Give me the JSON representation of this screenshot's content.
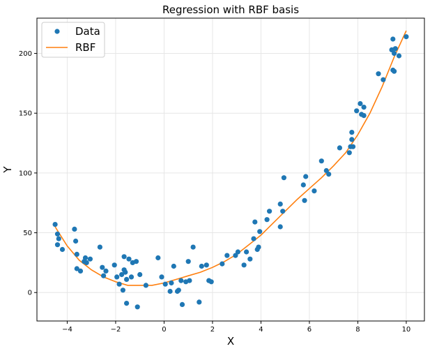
{
  "chart_data": {
    "type": "scatter",
    "title": "Regression with RBF basis",
    "xlabel": "X",
    "ylabel": "Y",
    "xlim": [
      -5.25,
      10.75
    ],
    "ylim": [
      -23.8,
      229.5
    ],
    "xticks": [
      -4,
      -2,
      0,
      2,
      4,
      6,
      8,
      10
    ],
    "yticks": [
      0,
      50,
      100,
      150,
      200
    ],
    "grid": true,
    "legend": {
      "placement": "upper-left",
      "entries": [
        "Data",
        "RBF"
      ]
    },
    "colors": {
      "data": "#1f77b4",
      "rbf": "#ff7f0e"
    },
    "series": [
      {
        "name": "Data",
        "type": "scatter",
        "points": [
          [
            -4.5,
            57
          ],
          [
            -4.4,
            49
          ],
          [
            -4.35,
            45
          ],
          [
            -4.4,
            40
          ],
          [
            -4.2,
            36
          ],
          [
            -3.7,
            53
          ],
          [
            -3.65,
            43
          ],
          [
            -3.6,
            32
          ],
          [
            -3.6,
            20
          ],
          [
            -3.45,
            18
          ],
          [
            -3.3,
            26
          ],
          [
            -3.25,
            29
          ],
          [
            -3.2,
            25
          ],
          [
            -3.05,
            28
          ],
          [
            -2.65,
            38
          ],
          [
            -2.55,
            21
          ],
          [
            -2.5,
            14
          ],
          [
            -2.4,
            18
          ],
          [
            -2.05,
            23
          ],
          [
            -1.95,
            13
          ],
          [
            -1.85,
            7
          ],
          [
            -1.75,
            15
          ],
          [
            -1.7,
            2
          ],
          [
            -1.65,
            19
          ],
          [
            -1.6,
            17
          ],
          [
            -1.55,
            11
          ],
          [
            -1.65,
            30
          ],
          [
            -1.45,
            28
          ],
          [
            -1.55,
            -9
          ],
          [
            -1.35,
            13
          ],
          [
            -1.3,
            25
          ],
          [
            -1.15,
            26
          ],
          [
            -1.1,
            -12
          ],
          [
            -1.0,
            15
          ],
          [
            -0.75,
            6
          ],
          [
            -0.25,
            29
          ],
          [
            -0.1,
            13
          ],
          [
            0.05,
            7
          ],
          [
            0.25,
            1
          ],
          [
            0.3,
            8
          ],
          [
            0.4,
            22
          ],
          [
            0.55,
            1
          ],
          [
            0.6,
            2
          ],
          [
            0.7,
            10
          ],
          [
            0.75,
            -10
          ],
          [
            0.9,
            9
          ],
          [
            1.0,
            26
          ],
          [
            1.05,
            10
          ],
          [
            1.2,
            38
          ],
          [
            1.45,
            -8
          ],
          [
            1.55,
            22
          ],
          [
            1.75,
            23
          ],
          [
            1.85,
            10
          ],
          [
            1.95,
            9
          ],
          [
            2.4,
            24
          ],
          [
            2.6,
            31
          ],
          [
            2.95,
            31
          ],
          [
            3.05,
            34
          ],
          [
            3.3,
            23
          ],
          [
            3.4,
            34
          ],
          [
            3.55,
            28
          ],
          [
            3.7,
            45
          ],
          [
            3.75,
            59
          ],
          [
            3.85,
            36
          ],
          [
            3.9,
            38
          ],
          [
            3.95,
            51
          ],
          [
            4.25,
            61
          ],
          [
            4.35,
            68
          ],
          [
            4.8,
            55
          ],
          [
            4.8,
            74
          ],
          [
            4.9,
            68
          ],
          [
            4.95,
            96
          ],
          [
            5.8,
            77
          ],
          [
            5.75,
            90
          ],
          [
            5.85,
            97
          ],
          [
            6.2,
            85
          ],
          [
            6.5,
            110
          ],
          [
            6.7,
            102
          ],
          [
            6.8,
            99
          ],
          [
            7.25,
            121
          ],
          [
            7.65,
            117
          ],
          [
            7.7,
            122
          ],
          [
            7.75,
            128
          ],
          [
            7.8,
            122
          ],
          [
            7.75,
            134
          ],
          [
            7.95,
            152
          ],
          [
            8.1,
            158
          ],
          [
            8.15,
            149
          ],
          [
            8.25,
            155
          ],
          [
            8.25,
            148
          ],
          [
            8.85,
            183
          ],
          [
            9.05,
            178
          ],
          [
            9.4,
            203
          ],
          [
            9.45,
            186
          ],
          [
            9.5,
            185
          ],
          [
            9.45,
            212
          ],
          [
            9.5,
            200
          ],
          [
            9.55,
            204
          ],
          [
            9.7,
            198
          ],
          [
            10.0,
            214
          ]
        ]
      },
      {
        "name": "RBF",
        "type": "line",
        "points": [
          [
            -4.5,
            55
          ],
          [
            -4.0,
            39
          ],
          [
            -3.5,
            27
          ],
          [
            -3.0,
            19
          ],
          [
            -2.5,
            13
          ],
          [
            -2.0,
            9
          ],
          [
            -1.5,
            6
          ],
          [
            -1.0,
            6
          ],
          [
            -0.5,
            6
          ],
          [
            0.0,
            8
          ],
          [
            0.5,
            11
          ],
          [
            1.0,
            14
          ],
          [
            1.5,
            17
          ],
          [
            2.0,
            21
          ],
          [
            2.5,
            26
          ],
          [
            3.0,
            32
          ],
          [
            3.5,
            40
          ],
          [
            4.0,
            48
          ],
          [
            4.5,
            58
          ],
          [
            5.0,
            68
          ],
          [
            5.5,
            78
          ],
          [
            6.0,
            87
          ],
          [
            6.5,
            96
          ],
          [
            7.0,
            106
          ],
          [
            7.5,
            117
          ],
          [
            8.0,
            132
          ],
          [
            8.5,
            150
          ],
          [
            9.0,
            172
          ],
          [
            9.5,
            197
          ],
          [
            10.0,
            219
          ]
        ]
      }
    ]
  }
}
